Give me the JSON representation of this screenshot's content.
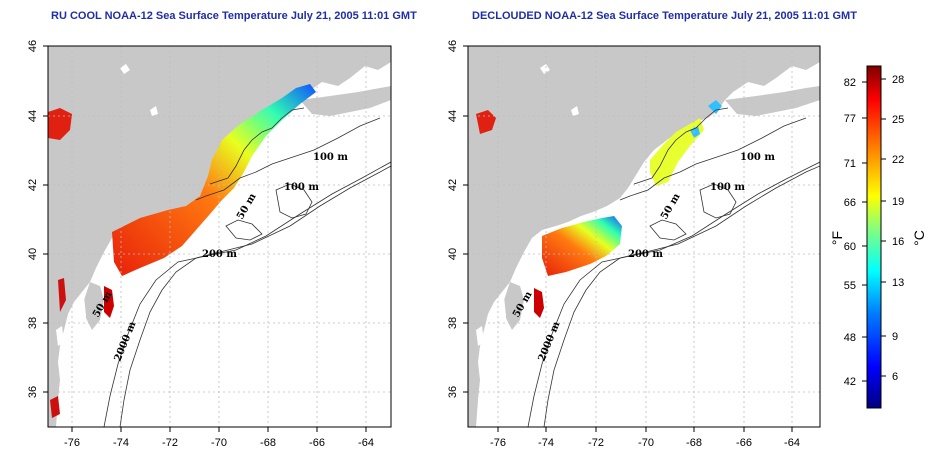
{
  "left_map": {
    "title": "RU COOL NOAA-12 Sea Surface Temperature July 21, 2005 11:01 GMT",
    "contour_labels": [
      "100 m",
      "100 m",
      "50 m",
      "200 m",
      "50 m",
      "2000 m"
    ]
  },
  "right_map": {
    "title": "DECLOUDED NOAA-12 Sea Surface Temperature July 21, 2005 11:01 GMT",
    "contour_labels": [
      "100 m",
      "100 m",
      "50 m",
      "200 m",
      "50 m",
      "2000 m"
    ]
  },
  "axes": {
    "lon_ticks": [
      "-76",
      "-74",
      "-72",
      "-70",
      "-68",
      "-66",
      "-64"
    ],
    "lat_ticks": [
      "46",
      "44",
      "42",
      "40",
      "38",
      "36"
    ]
  },
  "colorbar": {
    "fahrenheit_label": "°F",
    "celsius_label": "°C",
    "fahrenheit_ticks": [
      "82",
      "77",
      "71",
      "66",
      "60",
      "55",
      "48",
      "42"
    ],
    "celsius_ticks": [
      "28",
      "25",
      "22",
      "19",
      "16",
      "13",
      "9",
      "6"
    ],
    "colors": [
      "#000080",
      "#0000ff",
      "#0080ff",
      "#00ffff",
      "#80ff80",
      "#ffff00",
      "#ff8000",
      "#ff0000",
      "#800000"
    ]
  }
}
